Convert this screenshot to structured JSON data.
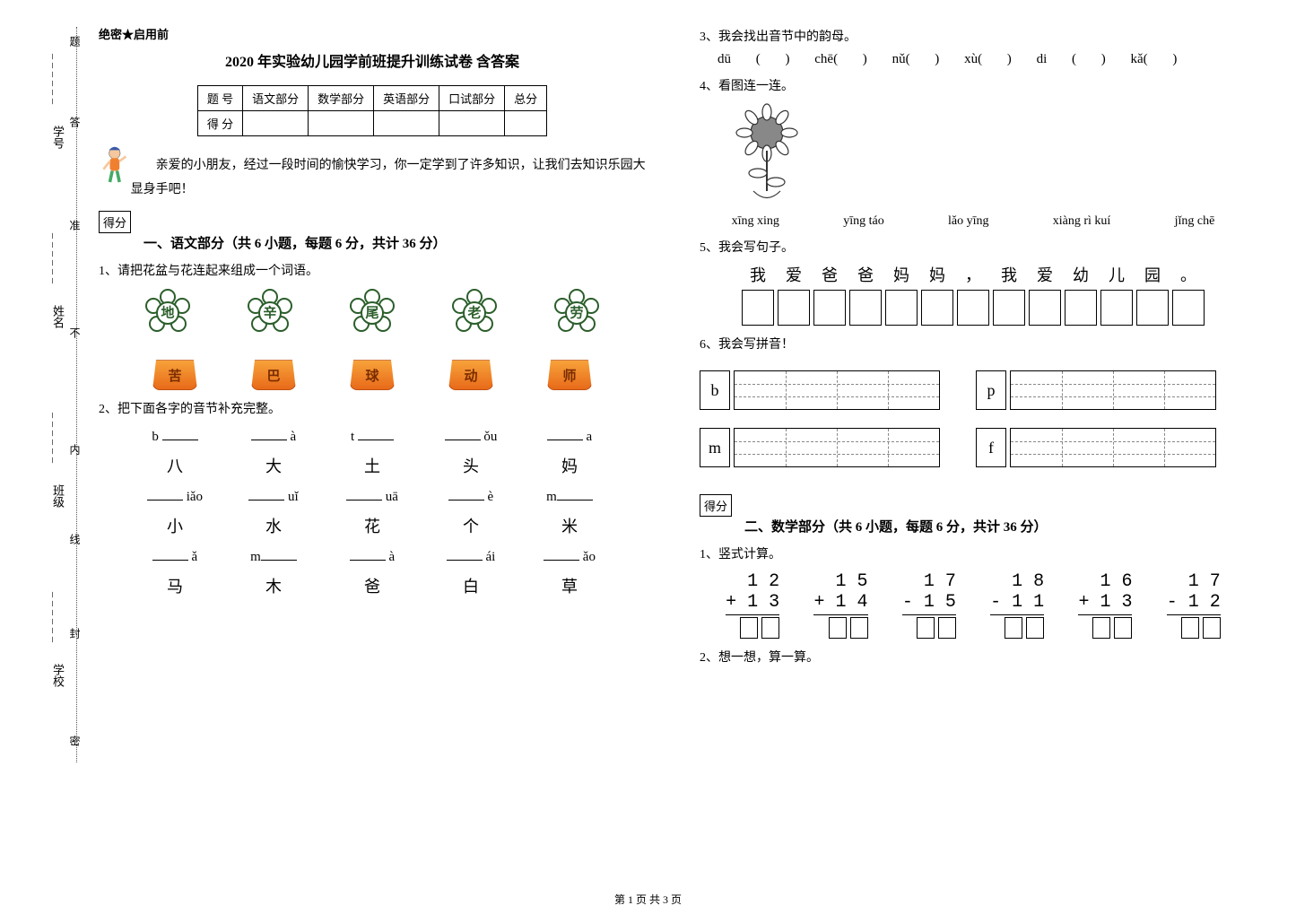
{
  "binding": {
    "labels": [
      "学号",
      "姓名",
      "班级",
      "学校"
    ],
    "markers": [
      "题",
      "答",
      "准",
      "不",
      "内",
      "线",
      "封",
      "密"
    ]
  },
  "header_label": "绝密★启用前",
  "title": "2020 年实验幼儿园学前班提升训练试卷 含答案",
  "score_table": {
    "headers": [
      "题 号",
      "语文部分",
      "数学部分",
      "英语部分",
      "口试部分",
      "总分"
    ],
    "row2": "得 分"
  },
  "intro": "亲爱的小朋友，经过一段时间的愉快学习，你一定学到了许多知识，让我们去知识乐园大显身手吧！",
  "score_badge": "得分",
  "section1_title": "一、语文部分（共 6 小题，每题 6 分，共计 36 分）",
  "q1": "1、请把花盆与花连起来组成一个词语。",
  "flowers": [
    "地",
    "辛",
    "尾",
    "老",
    "劳"
  ],
  "pots": [
    "苦",
    "巴",
    "球",
    "动",
    "师"
  ],
  "q2": "2、把下面各字的音节补充完整。",
  "pin_rows": [
    {
      "cells": [
        "b ____",
        "____ à",
        "t ____",
        "____ ǒu",
        "____ a"
      ],
      "chars": [
        "八",
        "大",
        "土",
        "头",
        "妈"
      ]
    },
    {
      "cells": [
        "____ iǎo",
        "____ uǐ",
        "____ uā",
        "____ è",
        "m____"
      ],
      "chars": [
        "小",
        "水",
        "花",
        "个",
        "米"
      ]
    },
    {
      "cells": [
        "____ ǎ",
        "m____",
        "____ à",
        "____ ái",
        "____ ǎo"
      ],
      "chars": [
        "马",
        "木",
        "爸",
        "白",
        "草"
      ]
    }
  ],
  "q3": "3、我会找出音节中的韵母。",
  "q3_items": [
    "dū (      )",
    "chē(      )",
    "nǔ(      )",
    "xù(      )",
    "di (      )",
    "kǎ(      )"
  ],
  "q4": "4、看图连一连。",
  "q4_words": [
    "xīng xing",
    "yīng táo",
    "lǎo yīng",
    "xiàng rì kuí",
    "jǐng chē"
  ],
  "q5": "5、我会写句子。",
  "q5_chars": [
    "我",
    "爱",
    "爸",
    "爸",
    "妈",
    "妈",
    "，",
    "我",
    "爱",
    "幼",
    "儿",
    "园",
    "。"
  ],
  "q6": "6、我会写拼音！",
  "q6_letters": [
    "b",
    "p",
    "m",
    "f"
  ],
  "section2_title": "二、数学部分（共 6 小题，每题 6 分，共计 36 分）",
  "mq1": "1、竖式计算。",
  "math": [
    {
      "a": "1 2",
      "b": "+ 1 3"
    },
    {
      "a": "1 5",
      "b": "+ 1 4"
    },
    {
      "a": "1 7",
      "b": "- 1 5"
    },
    {
      "a": "1 8",
      "b": "- 1 1"
    },
    {
      "a": "1 6",
      "b": "+ 1 3"
    },
    {
      "a": "1 7",
      "b": "- 1 2"
    }
  ],
  "mq2": "2、想一想，算一算。",
  "footer": "第 1 页 共 3 页"
}
